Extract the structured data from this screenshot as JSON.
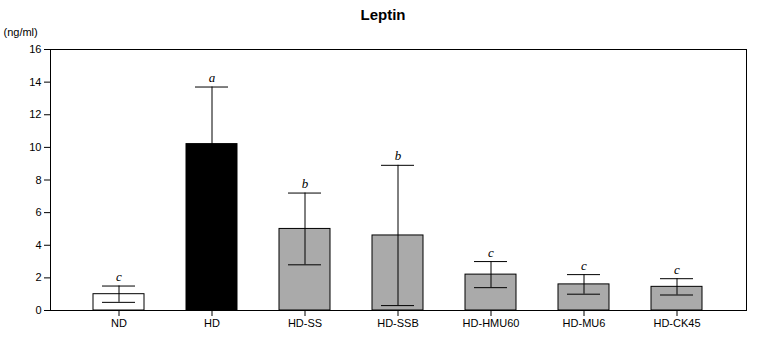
{
  "chart_data": {
    "type": "bar",
    "title": "Leptin",
    "ylabel": "(ng/ml)",
    "categories": [
      "ND",
      "HD",
      "HD-SS",
      "HD-SSB",
      "HD-HMU60",
      "HD-MU6",
      "HD-CK45"
    ],
    "values": [
      1.0,
      10.2,
      5.0,
      4.6,
      2.2,
      1.6,
      1.45
    ],
    "errors": [
      0.5,
      3.5,
      2.2,
      4.3,
      0.8,
      0.6,
      0.5
    ],
    "letters": [
      "c",
      "a",
      "b",
      "b",
      "c",
      "c",
      "c"
    ],
    "colors": [
      "white",
      "black",
      "#aaaaaa",
      "#aaaaaa",
      "#aaaaaa",
      "#aaaaaa",
      "#aaaaaa"
    ],
    "ylim": [
      0,
      16
    ],
    "yticks": [
      0,
      2,
      4,
      6,
      8,
      10,
      12,
      14,
      16
    ],
    "grid": false
  }
}
